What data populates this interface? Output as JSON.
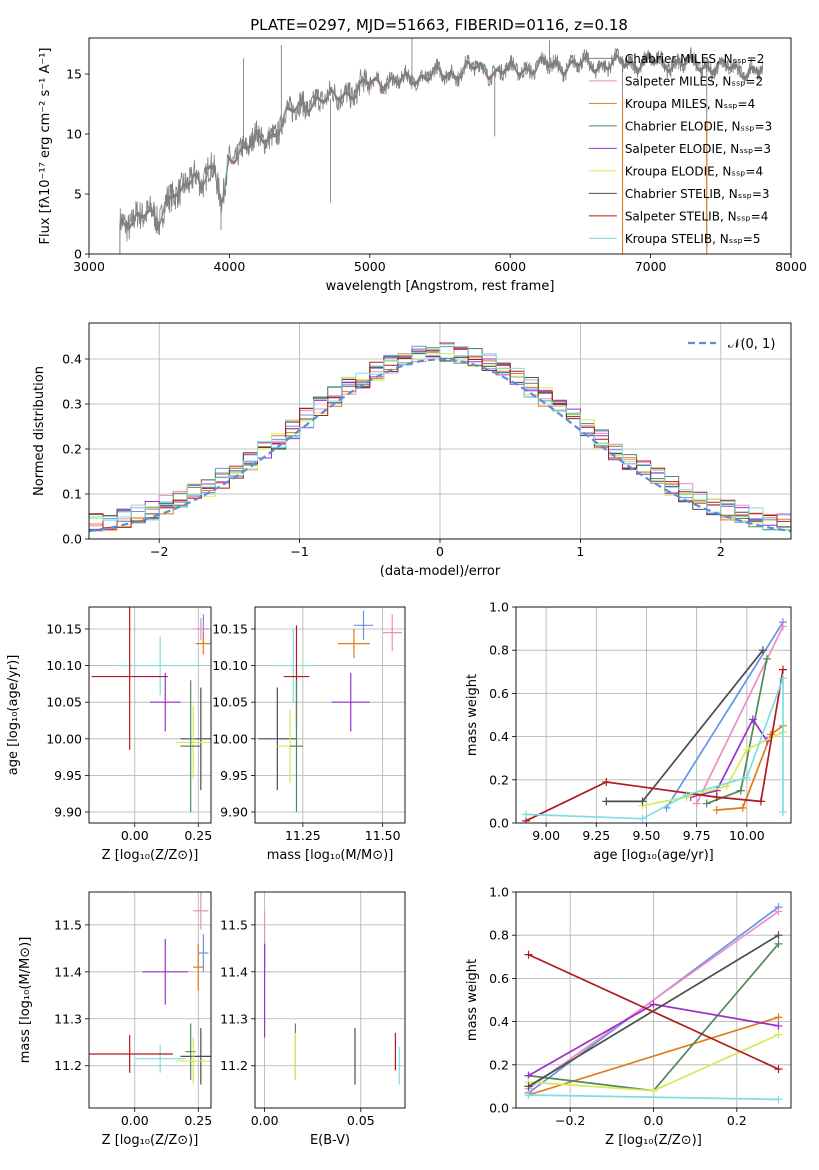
{
  "figure_title": "PLATE=0297, MJD=51663, FIBERID=0116, z=0.18",
  "colors": {
    "chabrier_miles": "#6495ed",
    "salpeter_miles": "#f08cc0",
    "kroupa_miles": "#e07b1f",
    "chabrier_elodie": "#4f8a5b",
    "salpeter_elodie": "#9b30c8",
    "kroupa_elodie": "#d7ea5a",
    "chabrier_stelib": "#4d4d4d",
    "salpeter_stelib": "#b0191d",
    "kroupa_stelib": "#7fdde0",
    "data": "#808080",
    "normal": "#5b8ed6"
  },
  "chart_data": [
    {
      "id": "spectrum",
      "type": "line",
      "title": "PLATE=0297, MJD=51663, FIBERID=0116, z=0.18",
      "xlabel": "wavelength [Angstrom, rest frame]",
      "ylabel": "Flux [fλ10⁻¹⁷ erg cm⁻² s⁻¹ A⁻¹]",
      "xlim": [
        3000,
        8000
      ],
      "ylim": [
        0,
        18
      ],
      "xticks": [
        3000,
        4000,
        5000,
        6000,
        7000,
        8000
      ],
      "yticks": [
        0,
        5,
        10,
        15
      ],
      "legend_position": "top-right",
      "legend": [
        {
          "label": "Chabrier MILES, Nₛₛₚ=2",
          "color": "#808080"
        },
        {
          "label": "Salpeter MILES, Nₛₛₚ=2",
          "color": "#f08cc0"
        },
        {
          "label": "Kroupa MILES, Nₛₛₚ=4",
          "color": "#e07b1f"
        },
        {
          "label": "Chabrier ELODIE, Nₛₛₚ=3",
          "color": "#4f8a5b"
        },
        {
          "label": "Salpeter ELODIE, Nₛₛₚ=3",
          "color": "#9b30c8"
        },
        {
          "label": "Kroupa ELODIE, Nₛₛₚ=4",
          "color": "#d7ea5a"
        },
        {
          "label": "Chabrier STELIB, Nₛₛₚ=3",
          "color": "#4d4d4d"
        },
        {
          "label": "Salpeter STELIB, Nₛₛₚ=4",
          "color": "#b0191d"
        },
        {
          "label": "Kroupa STELIB, Nₛₛₚ=5",
          "color": "#7fdde0"
        }
      ],
      "x": [
        3220,
        3300,
        3400,
        3500,
        3550,
        3600,
        3650,
        3700,
        3750,
        3800,
        3850,
        3900,
        3950,
        4000,
        4100,
        4200,
        4300,
        4400,
        4500,
        4600,
        4700,
        4800,
        4900,
        5000,
        5100,
        5200,
        5300,
        5400,
        5500,
        5600,
        5700,
        5800,
        5900,
        6000,
        6100,
        6200,
        6300,
        6400,
        6500,
        6600,
        6700,
        6800,
        6900,
        7000,
        7100,
        7200,
        7300,
        7400,
        7500,
        7600,
        7700,
        7800
      ],
      "y": [
        2.4,
        3.0,
        3.2,
        3.0,
        4.5,
        5.3,
        4.6,
        5.8,
        6.6,
        6.2,
        7.2,
        6.5,
        4.0,
        8.0,
        8.9,
        9.5,
        9.8,
        11.5,
        12.3,
        12.8,
        12.8,
        13.5,
        13.4,
        14.4,
        14.5,
        14.2,
        14.8,
        14.8,
        15.0,
        15.1,
        15.5,
        15.5,
        15.2,
        15.3,
        15.5,
        15.6,
        15.8,
        15.7,
        15.8,
        15.8,
        15.8,
        15.9,
        16.0,
        16.0,
        15.9,
        16.0,
        15.8,
        15.7,
        15.6,
        15.5,
        15.3,
        15.2
      ],
      "spikes": [
        [
          4720,
          4.3
        ],
        [
          3940,
          2.0
        ],
        [
          5890,
          9.8
        ],
        [
          6800,
          2.0
        ],
        [
          7400,
          0.6
        ],
        [
          4100,
          16.3
        ],
        [
          4370,
          17.4
        ],
        [
          5300,
          18.0
        ],
        [
          6280,
          17.8
        ]
      ]
    },
    {
      "id": "residuals",
      "type": "step",
      "xlabel": "(data-model)/error",
      "ylabel": "Normed distribution",
      "xlim": [
        -2.5,
        2.5
      ],
      "ylim": [
        0,
        0.48
      ],
      "xticks": [
        -2,
        -1,
        0,
        1,
        2
      ],
      "yticks": [
        0.0,
        0.1,
        0.2,
        0.3,
        0.4
      ],
      "grid": true,
      "legend_position": "top-right",
      "legend": [
        {
          "label": "𝒩(0, 1)",
          "color": "#5b8ed6",
          "dashed": true
        }
      ],
      "bin_width": 0.1
    },
    {
      "id": "age-vs-Z",
      "type": "errorbar",
      "xlabel": "Z [log₁₀(Z/Z⊙)]",
      "ylabel": "age  [log₁₀(age/yr)]",
      "xlim": [
        -0.18,
        0.3
      ],
      "ylim": [
        9.885,
        10.18
      ],
      "xticks": [
        0.0,
        0.25
      ],
      "yticks": [
        9.9,
        9.95,
        10.0,
        10.05,
        10.1,
        10.15
      ],
      "grid": true,
      "points": [
        {
          "c": "#6495ed",
          "x": 0.27,
          "xe": 0.02,
          "y": 10.15,
          "ye": 0.02
        },
        {
          "c": "#f08cc0",
          "x": 0.26,
          "xe": 0.03,
          "y": 10.15,
          "ye": 0.015
        },
        {
          "c": "#e07b1f",
          "x": 0.27,
          "xe": 0.03,
          "y": 10.13,
          "ye": 0.015
        },
        {
          "c": "#7fdde0",
          "x": 0.1,
          "xe": 0.16,
          "y": 10.1,
          "ye": 0.04
        },
        {
          "c": "#b0191d",
          "x": -0.02,
          "xe": 0.15,
          "y": 10.085,
          "ye": 0.1
        },
        {
          "c": "#9b30c8",
          "x": 0.12,
          "xe": 0.06,
          "y": 10.05,
          "ye": 0.04
        },
        {
          "c": "#4d4d4d",
          "x": 0.26,
          "xe": 0.08,
          "y": 10.0,
          "ye": 0.07
        },
        {
          "c": "#d7ea5a",
          "x": 0.23,
          "xe": 0.07,
          "y": 9.995,
          "ye": 0.05
        },
        {
          "c": "#4f8a5b",
          "x": 0.22,
          "xe": 0.04,
          "y": 9.99,
          "ye": 0.09
        }
      ]
    },
    {
      "id": "age-vs-mass",
      "type": "errorbar",
      "xlabel": "mass [log₁₀(M/M⊙)]",
      "ylabel": "",
      "xlim": [
        11.1,
        11.57
      ],
      "ylim": [
        9.885,
        10.18
      ],
      "xticks": [
        11.25,
        11.5
      ],
      "yticks": [
        9.9,
        9.95,
        10.0,
        10.05,
        10.1,
        10.15
      ],
      "grid": true,
      "points": [
        {
          "c": "#6495ed",
          "x": 11.44,
          "xe": 0.03,
          "y": 10.155,
          "ye": 0.02
        },
        {
          "c": "#f08cc0",
          "x": 11.53,
          "xe": 0.03,
          "y": 10.145,
          "ye": 0.025
        },
        {
          "c": "#e07b1f",
          "x": 11.41,
          "xe": 0.05,
          "y": 10.13,
          "ye": 0.02
        },
        {
          "c": "#7fdde0",
          "x": 11.22,
          "xe": 0.06,
          "y": 10.1,
          "ye": 0.05
        },
        {
          "c": "#b0191d",
          "x": 11.23,
          "xe": 0.04,
          "y": 10.085,
          "ye": 0.07
        },
        {
          "c": "#9b30c8",
          "x": 11.4,
          "xe": 0.06,
          "y": 10.05,
          "ye": 0.04
        },
        {
          "c": "#4d4d4d",
          "x": 11.17,
          "xe": 0.06,
          "y": 10.0,
          "ye": 0.07
        },
        {
          "c": "#d7ea5a",
          "x": 11.21,
          "xe": 0.04,
          "y": 9.99,
          "ye": 0.05
        },
        {
          "c": "#4f8a5b",
          "x": 11.23,
          "xe": 0.02,
          "y": 9.99,
          "ye": 0.09
        }
      ]
    },
    {
      "id": "weight-vs-age",
      "type": "line",
      "xlabel": "age  [log₁₀(age/yr)]",
      "ylabel": "mass weight",
      "xlim": [
        8.85,
        10.22
      ],
      "ylim": [
        0,
        1.0
      ],
      "xticks": [
        9.0,
        9.25,
        9.5,
        9.75,
        10.0
      ],
      "yticks": [
        0.0,
        0.2,
        0.4,
        0.6,
        0.8,
        1.0
      ],
      "grid": true,
      "series": [
        {
          "c": "#6495ed",
          "x": [
            9.6,
            10.18
          ],
          "y": [
            0.07,
            0.93
          ]
        },
        {
          "c": "#f08cc0",
          "x": [
            9.75,
            10.18
          ],
          "y": [
            0.09,
            0.91
          ]
        },
        {
          "c": "#e07b1f",
          "x": [
            9.85,
            9.98,
            10.12,
            10.18
          ],
          "y": [
            0.06,
            0.07,
            0.41,
            0.45
          ]
        },
        {
          "c": "#4f8a5b",
          "x": [
            9.8,
            9.97,
            10.1
          ],
          "y": [
            0.09,
            0.15,
            0.76
          ]
        },
        {
          "c": "#9b30c8",
          "x": [
            9.72,
            9.85,
            10.03,
            10.1
          ],
          "y": [
            0.12,
            0.15,
            0.48,
            0.38
          ]
        },
        {
          "c": "#d7ea5a",
          "x": [
            9.48,
            9.7,
            9.9,
            10.0,
            10.18
          ],
          "y": [
            0.08,
            0.12,
            0.17,
            0.34,
            0.42
          ]
        },
        {
          "c": "#4d4d4d",
          "x": [
            9.3,
            9.48,
            10.08
          ],
          "y": [
            0.1,
            0.1,
            0.8
          ]
        },
        {
          "c": "#b0191d",
          "x": [
            8.9,
            9.3,
            9.85,
            10.07,
            10.18
          ],
          "y": [
            0.01,
            0.19,
            0.12,
            0.1,
            0.71
          ]
        },
        {
          "c": "#7fdde0",
          "x": [
            8.9,
            9.48,
            9.7,
            10.0,
            10.18,
            10.18
          ],
          "y": [
            0.04,
            0.02,
            0.13,
            0.21,
            0.67,
            0.05
          ]
        }
      ]
    },
    {
      "id": "mass-vs-Z",
      "type": "errorbar",
      "xlabel": "Z [log₁₀(Z/Z⊙)]",
      "ylabel": "mass [log₁₀(M/M⊙)]",
      "xlim": [
        -0.18,
        0.3
      ],
      "ylim": [
        11.11,
        11.57
      ],
      "xticks": [
        0.0,
        0.25
      ],
      "yticks": [
        11.2,
        11.3,
        11.4,
        11.5
      ],
      "grid": true,
      "points": [
        {
          "c": "#f08cc0",
          "x": 0.26,
          "xe": 0.03,
          "y": 11.53,
          "ye": 0.04
        },
        {
          "c": "#6495ed",
          "x": 0.27,
          "xe": 0.02,
          "y": 11.44,
          "ye": 0.04
        },
        {
          "c": "#e07b1f",
          "x": 0.25,
          "xe": 0.02,
          "y": 11.41,
          "ye": 0.05
        },
        {
          "c": "#9b30c8",
          "x": 0.12,
          "xe": 0.09,
          "y": 11.4,
          "ye": 0.07
        },
        {
          "c": "#4d4d4d",
          "x": 0.26,
          "xe": 0.08,
          "y": 11.22,
          "ye": 0.06
        },
        {
          "c": "#4f8a5b",
          "x": 0.22,
          "xe": 0.02,
          "y": 11.23,
          "ye": 0.06
        },
        {
          "c": "#d7ea5a",
          "x": 0.23,
          "xe": 0.07,
          "y": 11.21,
          "ye": 0.05
        },
        {
          "c": "#7fdde0",
          "x": 0.1,
          "xe": 0.1,
          "y": 11.215,
          "ye": 0.03
        },
        {
          "c": "#b0191d",
          "x": -0.02,
          "xe": 0.17,
          "y": 11.225,
          "ye": 0.04
        }
      ]
    },
    {
      "id": "mass-vs-EBV",
      "type": "errorbar",
      "xlabel": "E(B-V)",
      "ylabel": "",
      "xlim": [
        -0.005,
        0.073
      ],
      "ylim": [
        11.11,
        11.57
      ],
      "xticks": [
        0.0,
        0.05
      ],
      "yticks": [
        11.2,
        11.3,
        11.4,
        11.5
      ],
      "grid": true,
      "points": [
        {
          "c": "#f08cc0",
          "x": 0.0,
          "xe": 0,
          "y": 11.47,
          "ye": 0.06
        },
        {
          "c": "#9b30c8",
          "x": 0.0,
          "xe": 0,
          "y": 11.36,
          "ye": 0.1
        },
        {
          "c": "#4f8a5b",
          "x": 0.016,
          "xe": 0,
          "y": 11.23,
          "ye": 0.06
        },
        {
          "c": "#d7ea5a",
          "x": 0.016,
          "xe": 0,
          "y": 11.22,
          "ye": 0.05
        },
        {
          "c": "#4d4d4d",
          "x": 0.047,
          "xe": 0,
          "y": 11.22,
          "ye": 0.06
        },
        {
          "c": "#b0191d",
          "x": 0.068,
          "xe": 0,
          "y": 11.23,
          "ye": 0.04
        },
        {
          "c": "#7fdde0",
          "x": 0.07,
          "xe": 0,
          "y": 11.2,
          "ye": 0.04
        }
      ]
    },
    {
      "id": "weight-vs-Z",
      "type": "line",
      "xlabel": "Z [log₁₀(Z/Z⊙)]",
      "ylabel": "mass weight",
      "xlim": [
        -0.33,
        0.33
      ],
      "ylim": [
        0,
        1.0
      ],
      "xticks": [
        -0.2,
        0.0,
        0.2
      ],
      "yticks": [
        0.0,
        0.2,
        0.4,
        0.6,
        0.8,
        1.0
      ],
      "grid": true,
      "series": [
        {
          "c": "#6495ed",
          "x": [
            -0.3,
            0.3
          ],
          "y": [
            0.07,
            0.93
          ]
        },
        {
          "c": "#f08cc0",
          "x": [
            -0.3,
            0.3
          ],
          "y": [
            0.09,
            0.91
          ]
        },
        {
          "c": "#e07b1f",
          "x": [
            -0.3,
            0.3
          ],
          "y": [
            0.06,
            0.42
          ]
        },
        {
          "c": "#4f8a5b",
          "x": [
            -0.3,
            0.0,
            0.3
          ],
          "y": [
            0.15,
            0.08,
            0.76
          ]
        },
        {
          "c": "#9b30c8",
          "x": [
            -0.3,
            0.0,
            0.3
          ],
          "y": [
            0.15,
            0.48,
            0.38
          ]
        },
        {
          "c": "#d7ea5a",
          "x": [
            -0.3,
            0.0,
            0.3
          ],
          "y": [
            0.12,
            0.08,
            0.34
          ]
        },
        {
          "c": "#4d4d4d",
          "x": [
            -0.3,
            0.3
          ],
          "y": [
            0.1,
            0.8
          ]
        },
        {
          "c": "#b0191d",
          "x": [
            -0.3,
            0.3
          ],
          "y": [
            0.71,
            0.18
          ]
        },
        {
          "c": "#7fdde0",
          "x": [
            -0.3,
            0.3
          ],
          "y": [
            0.06,
            0.04
          ]
        }
      ]
    }
  ]
}
